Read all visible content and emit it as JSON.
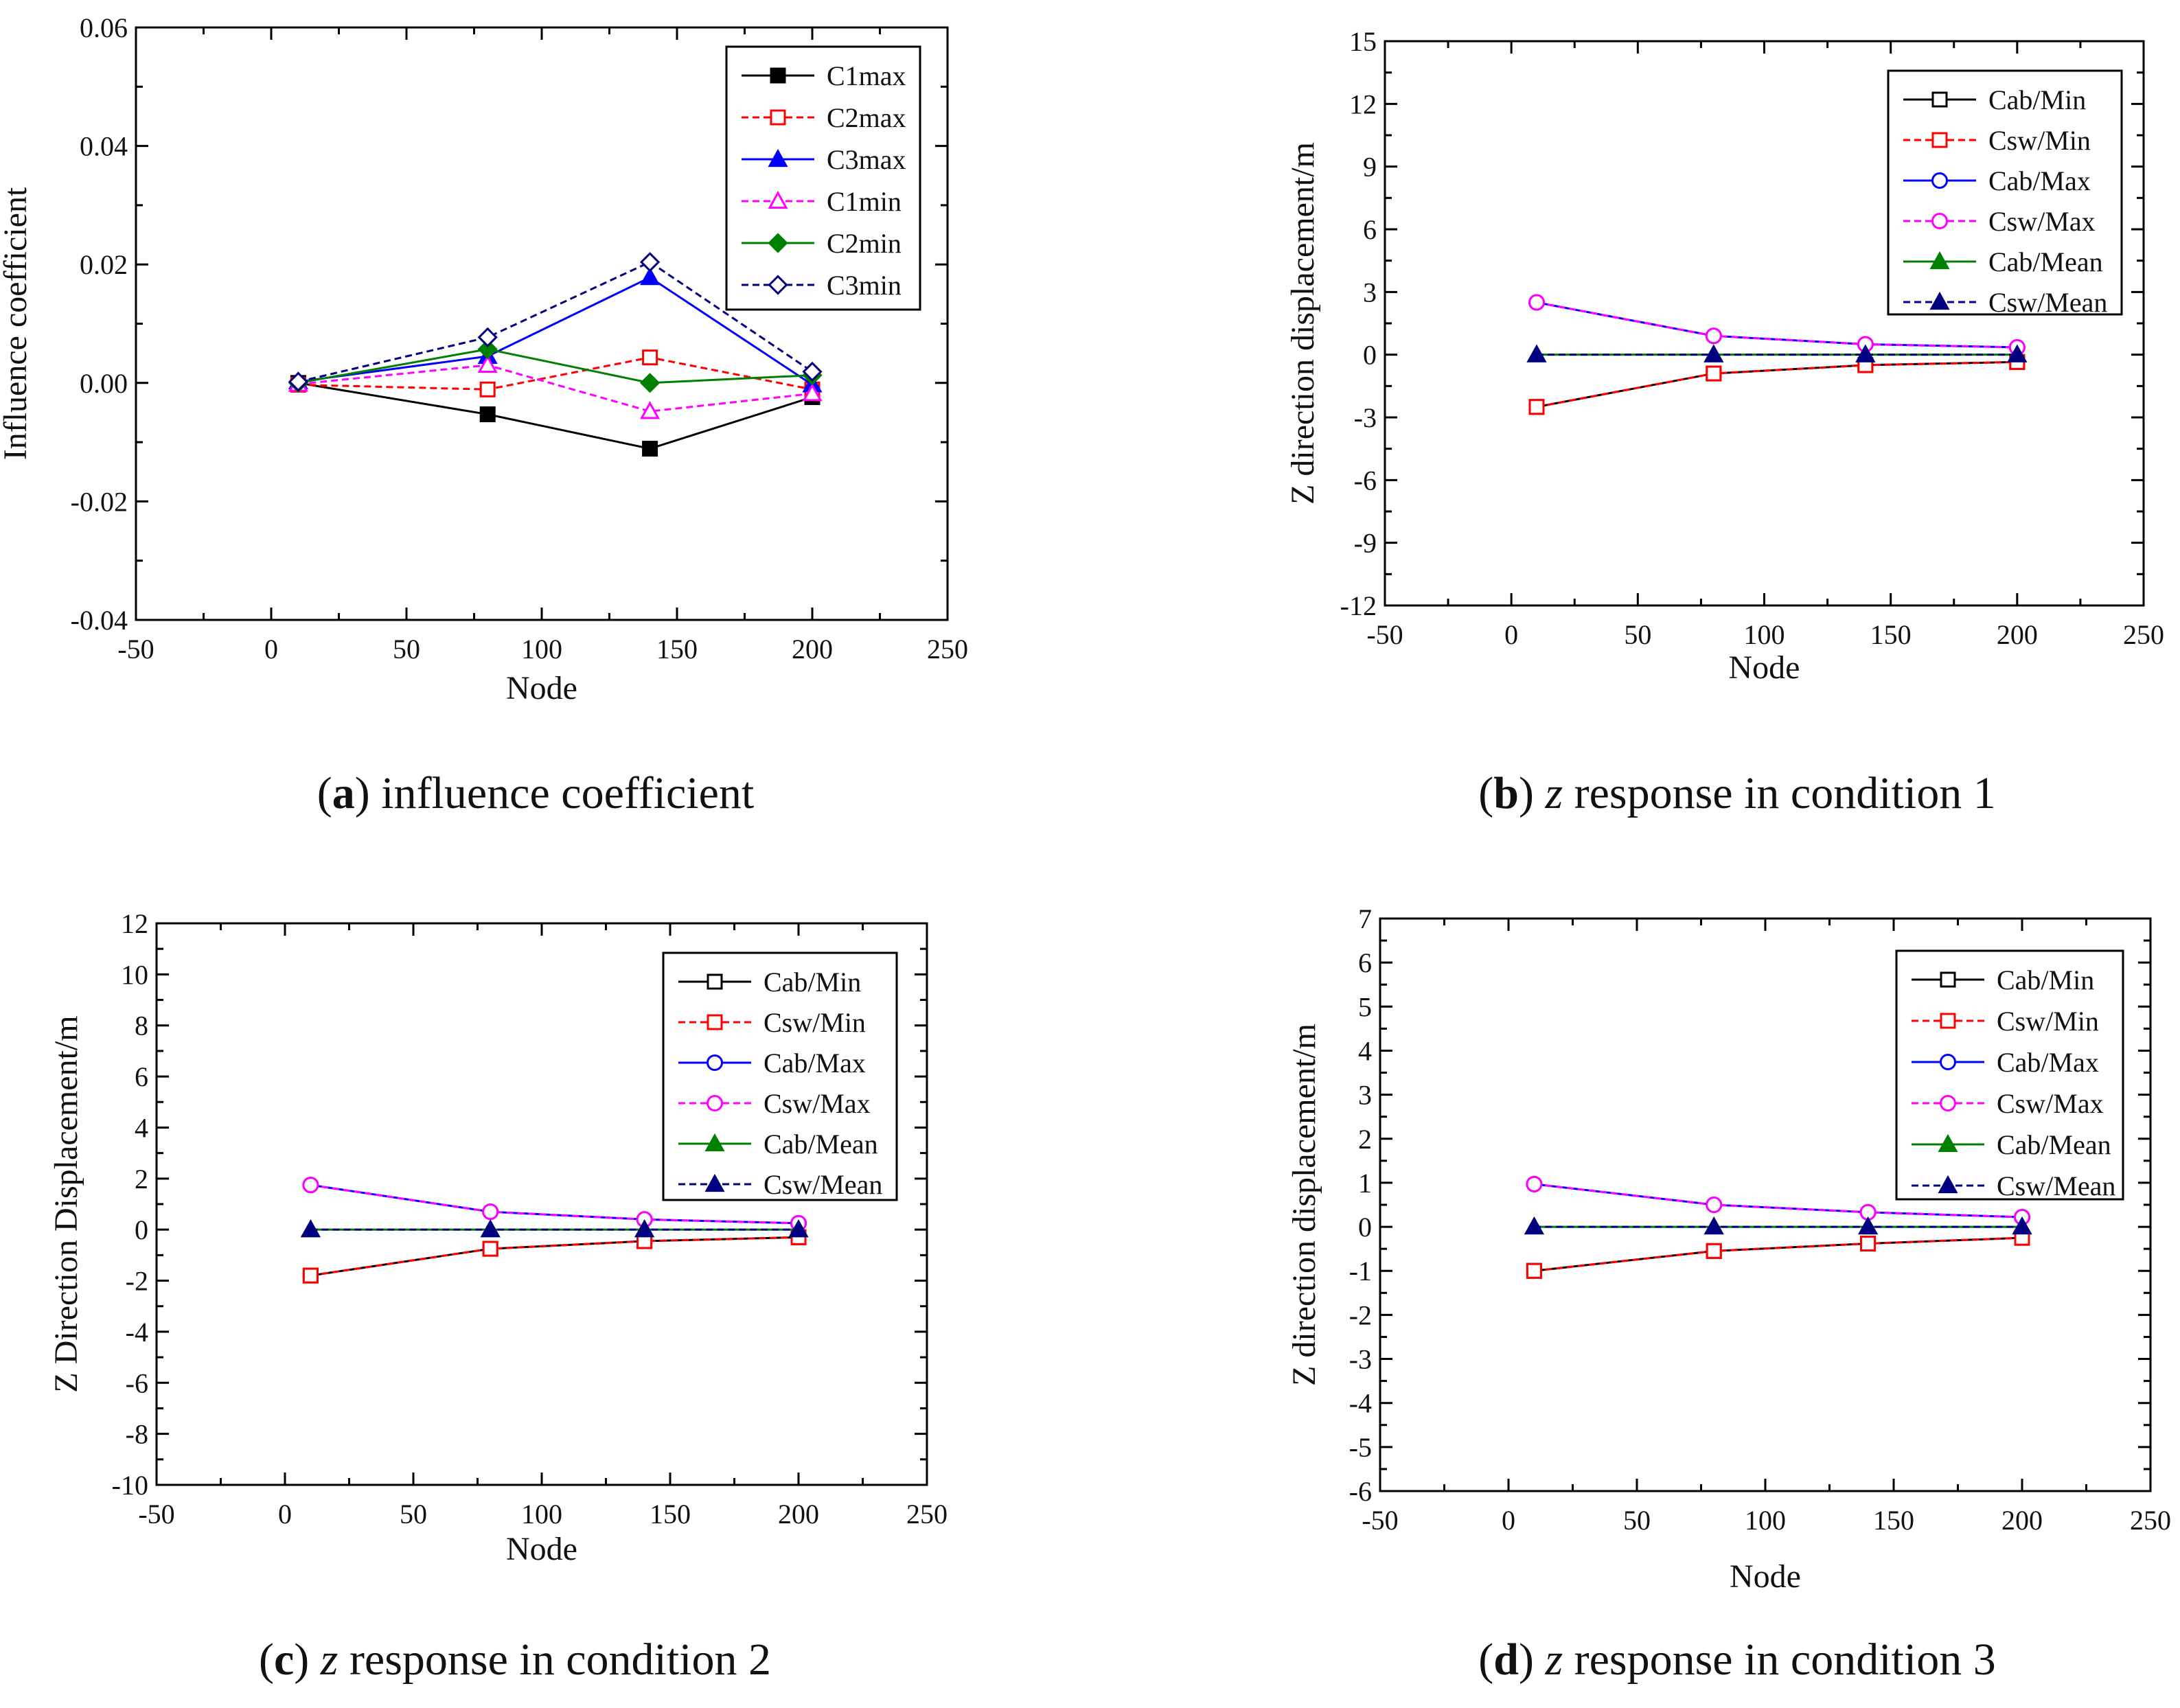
{
  "figure": {
    "captions": [
      {
        "letter": "a",
        "text": "influence coefficient"
      },
      {
        "letter": "b",
        "var": "z",
        "text": "response in condition 1"
      },
      {
        "letter": "c",
        "var": "z",
        "text": "response in condition 2"
      },
      {
        "letter": "d",
        "var": "z",
        "text": "response in condition 3"
      }
    ]
  },
  "chart_data": [
    {
      "type": "line",
      "title": "(a) influence coefficient",
      "xlabel": "Node",
      "ylabel": "Influence coefficient",
      "xlim": [
        -50,
        250
      ],
      "xticks": [
        -50,
        0,
        50,
        100,
        150,
        200,
        250
      ],
      "ylim": [
        -0.04,
        0.06
      ],
      "yticks": [
        -0.04,
        -0.02,
        0.0,
        0.02,
        0.04,
        0.06
      ],
      "ytick_labels": [
        "-0.04",
        "-0.02",
        "0.00",
        "0.02",
        "0.04",
        "0.06"
      ],
      "legend_position": "top-right",
      "x": [
        10,
        80,
        140,
        200
      ],
      "series": [
        {
          "name": "C1max",
          "values": [
            0.0,
            -0.0053,
            -0.0111,
            -0.0024
          ],
          "color": "#000000",
          "marker": "square",
          "filled": true,
          "dashed": false
        },
        {
          "name": "C2max",
          "values": [
            -0.0003,
            -0.0011,
            0.0043,
            -0.0011
          ],
          "color": "#ff0000",
          "marker": "square",
          "filled": false,
          "dashed": true
        },
        {
          "name": "C3max",
          "values": [
            0.0002,
            0.0045,
            0.0178,
            -0.0003
          ],
          "color": "#0000ff",
          "marker": "triangle",
          "filled": true,
          "dashed": false
        },
        {
          "name": "C1min",
          "values": [
            -0.0002,
            0.003,
            -0.0048,
            -0.0018
          ],
          "color": "#ff00ff",
          "marker": "triangle",
          "filled": false,
          "dashed": true
        },
        {
          "name": "C2min",
          "values": [
            0.0,
            0.0057,
            0.0,
            0.0013
          ],
          "color": "#008000",
          "marker": "diamond",
          "filled": true,
          "dashed": false
        },
        {
          "name": "C3min",
          "values": [
            0.0002,
            0.0077,
            0.0204,
            0.0019
          ],
          "color": "#000080",
          "marker": "diamond",
          "filled": false,
          "dashed": true
        }
      ]
    },
    {
      "type": "line",
      "title": "(b) z response in condition 1",
      "xlabel": "Node",
      "ylabel": "Z direction displacement/m",
      "xlim": [
        -50,
        250
      ],
      "xticks": [
        -50,
        0,
        50,
        100,
        150,
        200,
        250
      ],
      "ylim": [
        -12,
        15
      ],
      "yticks": [
        -12,
        -9,
        -6,
        -3,
        0,
        3,
        6,
        9,
        12,
        15
      ],
      "ytick_labels": [
        "-12",
        "-9",
        "-6",
        "-3",
        "0",
        "3",
        "6",
        "9",
        "12",
        "15"
      ],
      "legend_position": "top-right",
      "x": [
        10,
        80,
        140,
        200
      ],
      "series": [
        {
          "name": "Cab/Min",
          "values": [
            -2.5,
            -0.9,
            -0.5,
            -0.35
          ],
          "color": "#000000",
          "marker": "square",
          "filled": false,
          "dashed": false
        },
        {
          "name": "Csw/Min",
          "values": [
            -2.5,
            -0.9,
            -0.5,
            -0.35
          ],
          "color": "#ff0000",
          "marker": "square",
          "filled": false,
          "dashed": true
        },
        {
          "name": "Cab/Max",
          "values": [
            2.5,
            0.9,
            0.5,
            0.35
          ],
          "color": "#0000ff",
          "marker": "circle",
          "filled": false,
          "dashed": false
        },
        {
          "name": "Csw/Max",
          "values": [
            2.5,
            0.9,
            0.5,
            0.35
          ],
          "color": "#ff00ff",
          "marker": "circle",
          "filled": false,
          "dashed": true
        },
        {
          "name": "Cab/Mean",
          "values": [
            0,
            0,
            0,
            0
          ],
          "color": "#008000",
          "marker": "triangle",
          "filled": true,
          "dashed": false
        },
        {
          "name": "Csw/Mean",
          "values": [
            0,
            0,
            0,
            0
          ],
          "color": "#000080",
          "marker": "triangle",
          "filled": true,
          "dashed": true
        }
      ]
    },
    {
      "type": "line",
      "title": "(c) z response in condition 2",
      "xlabel": "Node",
      "ylabel": "Z Direction  Displacement/m",
      "xlim": [
        -50,
        250
      ],
      "xticks": [
        -50,
        0,
        50,
        100,
        150,
        200,
        250
      ],
      "ylim": [
        -10,
        12
      ],
      "yticks": [
        -10,
        -8,
        -6,
        -4,
        -2,
        0,
        2,
        4,
        6,
        8,
        10,
        12
      ],
      "ytick_labels": [
        "-10",
        "-8",
        "-6",
        "-4",
        "-2",
        "0",
        "2",
        "4",
        "6",
        "8",
        "10",
        "12"
      ],
      "legend_position": "top-right",
      "x": [
        10,
        80,
        140,
        200
      ],
      "series": [
        {
          "name": "Cab/Min",
          "values": [
            -1.8,
            -0.75,
            -0.45,
            -0.3
          ],
          "color": "#000000",
          "marker": "square",
          "filled": false,
          "dashed": false
        },
        {
          "name": "Csw/Min",
          "values": [
            -1.8,
            -0.75,
            -0.45,
            -0.3
          ],
          "color": "#ff0000",
          "marker": "square",
          "filled": false,
          "dashed": true
        },
        {
          "name": "Cab/Max",
          "values": [
            1.75,
            0.7,
            0.4,
            0.25
          ],
          "color": "#0000ff",
          "marker": "circle",
          "filled": false,
          "dashed": false
        },
        {
          "name": "Csw/Max",
          "values": [
            1.75,
            0.7,
            0.4,
            0.25
          ],
          "color": "#ff00ff",
          "marker": "circle",
          "filled": false,
          "dashed": true
        },
        {
          "name": "Cab/Mean",
          "values": [
            0,
            0,
            0,
            0
          ],
          "color": "#008000",
          "marker": "triangle",
          "filled": true,
          "dashed": false
        },
        {
          "name": "Csw/Mean",
          "values": [
            0,
            0,
            0,
            0
          ],
          "color": "#000080",
          "marker": "triangle",
          "filled": true,
          "dashed": true
        }
      ]
    },
    {
      "type": "line",
      "title": "(d) z response in condition 3",
      "xlabel": "Node",
      "ylabel": "Z direction displacement/m",
      "xlim": [
        -50,
        250
      ],
      "xticks": [
        -50,
        0,
        50,
        100,
        150,
        200,
        250
      ],
      "ylim": [
        -6,
        7
      ],
      "yticks": [
        -6,
        -5,
        -4,
        -3,
        -2,
        -1,
        0,
        1,
        2,
        3,
        4,
        5,
        6,
        7
      ],
      "ytick_labels": [
        "-6",
        "-5",
        "-4",
        "-3",
        "-2",
        "-1",
        "0",
        "1",
        "2",
        "3",
        "4",
        "5",
        "6",
        "7"
      ],
      "legend_position": "top-right",
      "x": [
        10,
        80,
        140,
        200
      ],
      "series": [
        {
          "name": "Cab/Min",
          "values": [
            -1.0,
            -0.55,
            -0.38,
            -0.25
          ],
          "color": "#000000",
          "marker": "square",
          "filled": false,
          "dashed": false
        },
        {
          "name": "Csw/Min",
          "values": [
            -1.0,
            -0.55,
            -0.38,
            -0.25
          ],
          "color": "#ff0000",
          "marker": "square",
          "filled": false,
          "dashed": true
        },
        {
          "name": "Cab/Max",
          "values": [
            0.97,
            0.5,
            0.33,
            0.22
          ],
          "color": "#0000ff",
          "marker": "circle",
          "filled": false,
          "dashed": false
        },
        {
          "name": "Csw/Max",
          "values": [
            0.97,
            0.5,
            0.33,
            0.22
          ],
          "color": "#ff00ff",
          "marker": "circle",
          "filled": false,
          "dashed": true
        },
        {
          "name": "Cab/Mean",
          "values": [
            0,
            0,
            0,
            0
          ],
          "color": "#008000",
          "marker": "triangle",
          "filled": true,
          "dashed": false
        },
        {
          "name": "Csw/Mean",
          "values": [
            0,
            0,
            0,
            0
          ],
          "color": "#000080",
          "marker": "triangle",
          "filled": true,
          "dashed": true
        }
      ]
    }
  ]
}
